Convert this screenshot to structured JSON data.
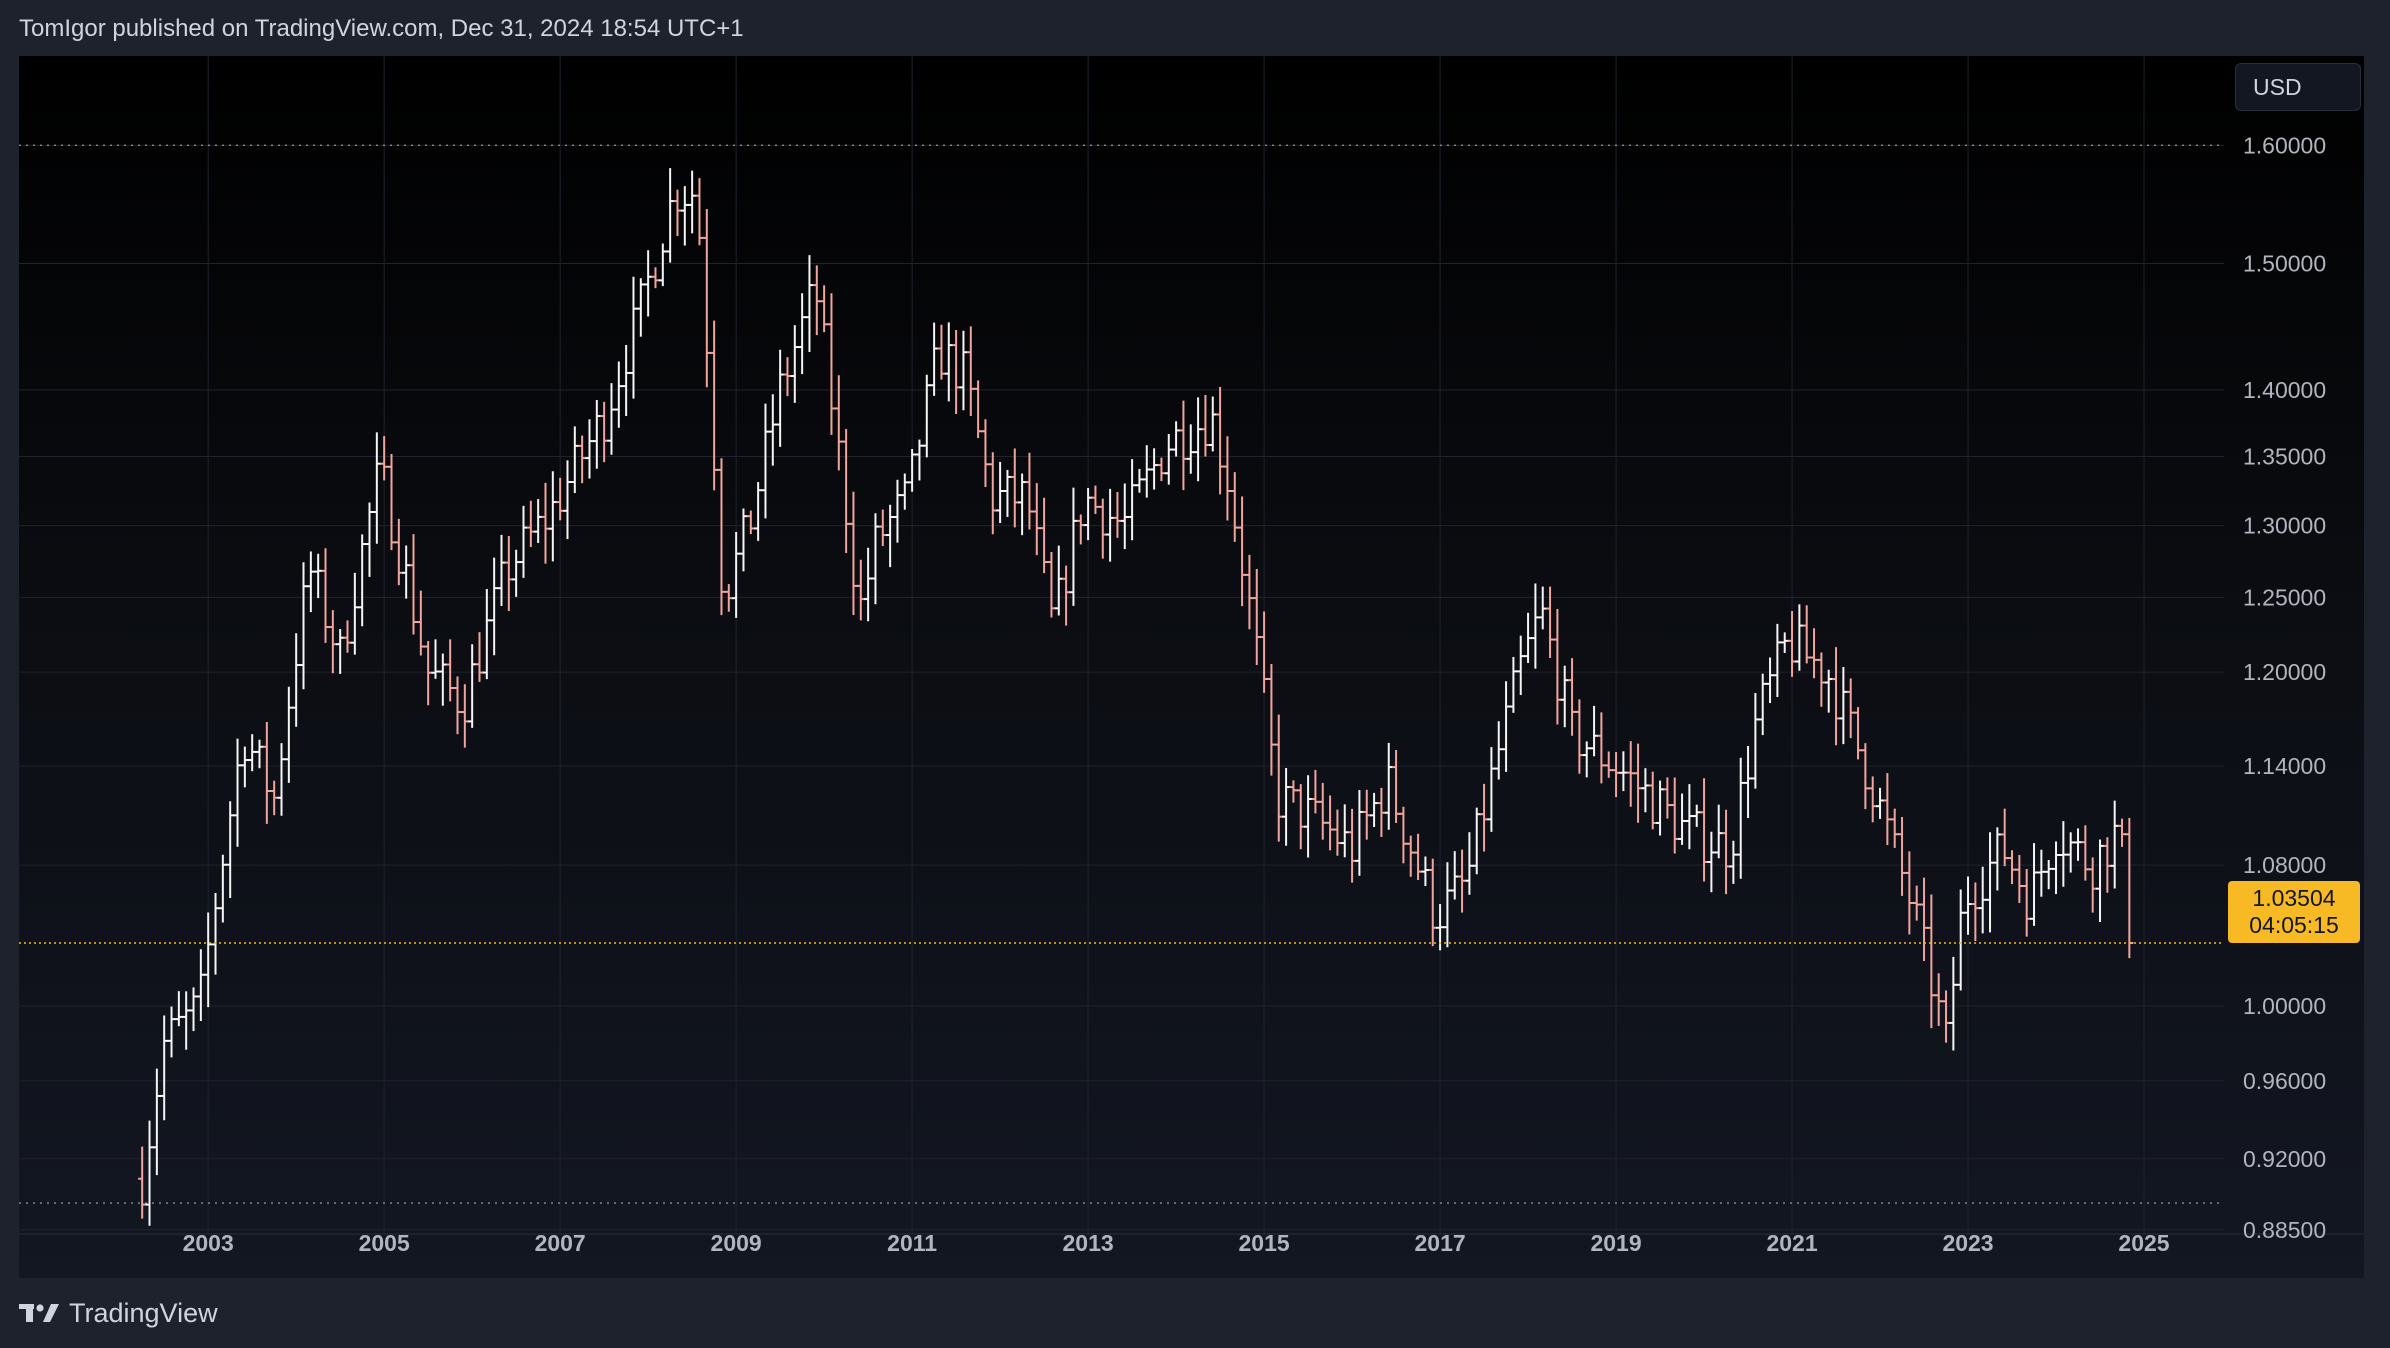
{
  "header": {
    "publisher_line": "TomIgor published on TradingView.com, Dec 31, 2024 18:54 UTC+1"
  },
  "toolbar": {
    "currency_label": "USD"
  },
  "price_badge": {
    "price": "1.03504",
    "countdown": "04:05:15"
  },
  "footer": {
    "logo_label": "TradingView",
    "logo_icon": "tradingview-logo-icon"
  },
  "colors": {
    "up_bar": "#f5f5f5",
    "down_bar": "#f2a59e",
    "last_price": "#f7b924",
    "grid": "#1f232d",
    "axis_text": "#b2b5be"
  },
  "chart_data": {
    "type": "ohlc",
    "interval": "monthly bars",
    "scale": "log",
    "ylim": [
      0.862,
      1.68
    ],
    "xlim": [
      2000.85,
      2027.5
    ],
    "y_ticks": [
      {
        "value": 1.6,
        "label": "1.60000"
      },
      {
        "value": 1.5,
        "label": "1.50000"
      },
      {
        "value": 1.4,
        "label": "1.40000"
      },
      {
        "value": 1.35,
        "label": "1.35000"
      },
      {
        "value": 1.3,
        "label": "1.30000"
      },
      {
        "value": 1.25,
        "label": "1.25000"
      },
      {
        "value": 1.2,
        "label": "1.20000"
      },
      {
        "value": 1.14,
        "label": "1.14000"
      },
      {
        "value": 1.08,
        "label": "1.08000"
      },
      {
        "value": 1.0,
        "label": "1.00000"
      },
      {
        "value": 0.96,
        "label": "0.96000"
      },
      {
        "value": 0.92,
        "label": "0.92000"
      },
      {
        "value": 0.885,
        "label": "0.88500"
      }
    ],
    "x_ticks": [
      "2003",
      "2005",
      "2007",
      "2009",
      "2011",
      "2013",
      "2015",
      "2017",
      "2019",
      "2021",
      "2023",
      "2025"
    ],
    "range_high": 1.6,
    "range_low": 0.898,
    "last_price": 1.03504,
    "anchors": [
      [
        2002.25,
        0.91
      ],
      [
        2002.5,
        0.98
      ],
      [
        2002.9,
        1.0
      ],
      [
        2003.4,
        1.16
      ],
      [
        2003.75,
        1.12
      ],
      [
        2004.15,
        1.27
      ],
      [
        2004.5,
        1.21
      ],
      [
        2004.95,
        1.34
      ],
      [
        2005.5,
        1.2
      ],
      [
        2005.9,
        1.18
      ],
      [
        2006.4,
        1.27
      ],
      [
        2006.9,
        1.31
      ],
      [
        2007.5,
        1.38
      ],
      [
        2007.9,
        1.46
      ],
      [
        2008.3,
        1.56
      ],
      [
        2008.55,
        1.56
      ],
      [
        2008.85,
        1.25
      ],
      [
        2009.15,
        1.3
      ],
      [
        2009.5,
        1.4
      ],
      [
        2009.9,
        1.48
      ],
      [
        2010.4,
        1.24
      ],
      [
        2010.6,
        1.29
      ],
      [
        2010.95,
        1.32
      ],
      [
        2011.3,
        1.43
      ],
      [
        2011.6,
        1.41
      ],
      [
        2011.9,
        1.32
      ],
      [
        2012.3,
        1.32
      ],
      [
        2012.6,
        1.23
      ],
      [
        2012.95,
        1.32
      ],
      [
        2013.4,
        1.3
      ],
      [
        2013.9,
        1.36
      ],
      [
        2014.4,
        1.38
      ],
      [
        2014.6,
        1.33
      ],
      [
        2014.95,
        1.2
      ],
      [
        2015.15,
        1.12
      ],
      [
        2015.5,
        1.11
      ],
      [
        2016.0,
        1.09
      ],
      [
        2016.4,
        1.13
      ],
      [
        2016.95,
        1.05
      ],
      [
        2017.3,
        1.07
      ],
      [
        2017.9,
        1.2
      ],
      [
        2018.15,
        1.24
      ],
      [
        2018.5,
        1.16
      ],
      [
        2019.0,
        1.14
      ],
      [
        2019.4,
        1.12
      ],
      [
        2019.8,
        1.1
      ],
      [
        2020.3,
        1.09
      ],
      [
        2020.6,
        1.17
      ],
      [
        2020.95,
        1.22
      ],
      [
        2021.4,
        1.2
      ],
      [
        2021.9,
        1.13
      ],
      [
        2022.4,
        1.05
      ],
      [
        2022.75,
        0.98
      ],
      [
        2022.95,
        1.06
      ],
      [
        2023.4,
        1.09
      ],
      [
        2023.7,
        1.06
      ],
      [
        2024.0,
        1.1
      ],
      [
        2024.4,
        1.08
      ],
      [
        2024.7,
        1.1
      ],
      [
        2024.9,
        1.04
      ]
    ]
  }
}
